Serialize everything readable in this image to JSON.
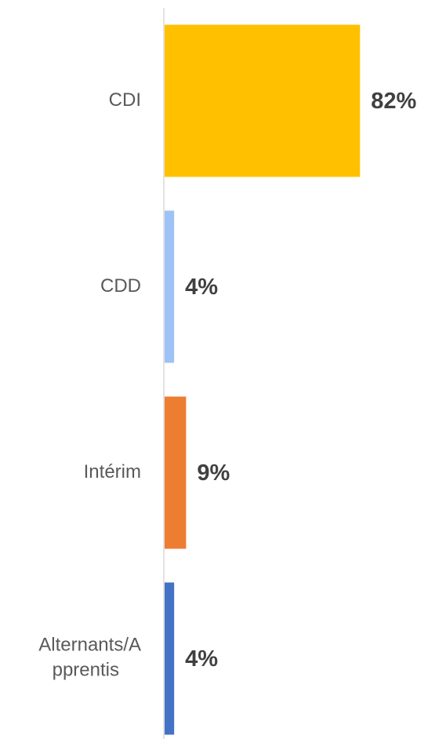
{
  "chart_data": {
    "type": "bar",
    "orientation": "horizontal",
    "categories": [
      "CDI",
      "CDD",
      "Intérim",
      "Alternants/Apprentis"
    ],
    "values": [
      82,
      4,
      9,
      4
    ],
    "value_labels": [
      "82%",
      "4%",
      "9%",
      "4%"
    ],
    "colors": [
      "#ffc000",
      "#9dc3f6",
      "#ed7d31",
      "#4472c4"
    ]
  }
}
